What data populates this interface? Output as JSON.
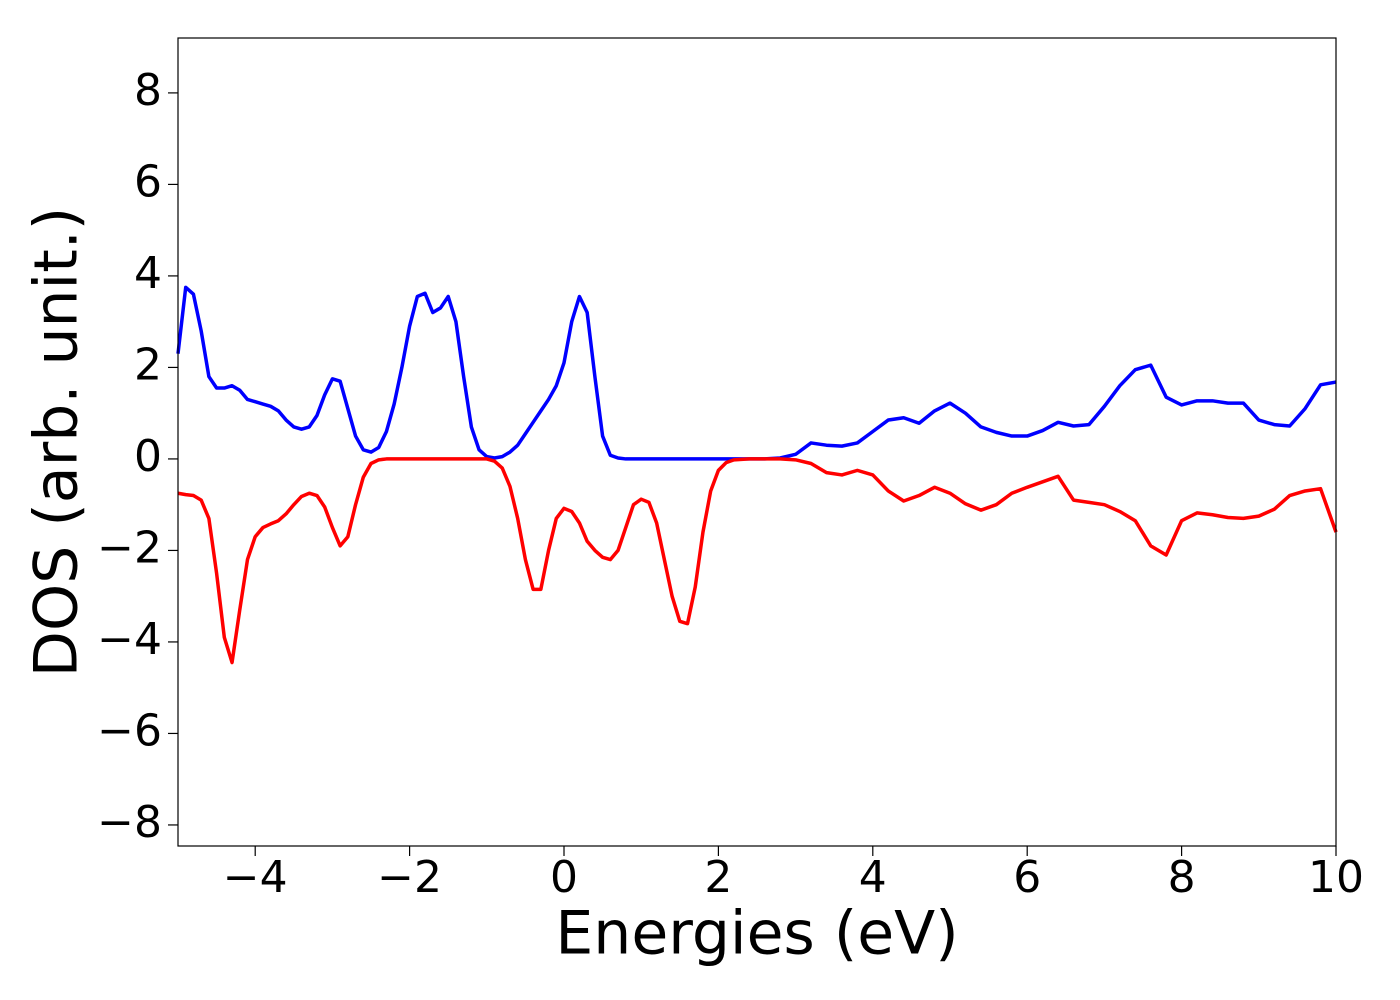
{
  "chart_data": {
    "type": "line",
    "xlabel": "Energies (eV)",
    "ylabel": "DOS (arb. unit.)",
    "x": [
      -5,
      -4.9,
      -4.8,
      -4.7,
      -4.6,
      -4.5,
      -4.4,
      -4.3,
      -4.2,
      -4.1,
      -4,
      -3.9,
      -3.8,
      -3.7,
      -3.6,
      -3.5,
      -3.4,
      -3.3,
      -3.2,
      -3.1,
      -3,
      -2.9,
      -2.8,
      -2.7,
      -2.6,
      -2.5,
      -2.4,
      -2.3,
      -2.2,
      -2.1,
      -2,
      -1.9,
      -1.8,
      -1.7,
      -1.6,
      -1.5,
      -1.4,
      -1.3,
      -1.2,
      -1.1,
      -1,
      -0.9,
      -0.8,
      -0.7,
      -0.6,
      -0.5,
      -0.4,
      -0.3,
      -0.2,
      -0.1,
      0,
      0.1,
      0.2,
      0.3,
      0.4,
      0.5,
      0.6,
      0.7,
      0.8,
      0.9,
      1,
      1.1,
      1.2,
      1.3,
      1.4,
      1.5,
      1.6,
      1.7,
      1.8,
      1.9,
      2,
      2.1,
      2.2,
      2.4,
      2.6,
      2.8,
      3,
      3.2,
      3.4,
      3.6,
      3.8,
      4,
      4.2,
      4.4,
      4.6,
      4.8,
      5,
      5.2,
      5.4,
      5.6,
      5.8,
      6,
      6.2,
      6.4,
      6.6,
      6.8,
      7,
      7.2,
      7.4,
      7.6,
      7.8,
      8,
      8.2,
      8.4,
      8.6,
      8.8,
      9,
      9.2,
      9.4,
      9.6,
      9.8,
      10
    ],
    "series": [
      {
        "color": "#0000ff",
        "values": [
          2.3,
          3.75,
          3.6,
          2.8,
          1.8,
          1.55,
          1.55,
          1.6,
          1.5,
          1.3,
          1.25,
          1.2,
          1.15,
          1.05,
          0.85,
          0.7,
          0.65,
          0.7,
          0.95,
          1.4,
          1.75,
          1.7,
          1.1,
          0.5,
          0.2,
          0.15,
          0.25,
          0.6,
          1.2,
          2.0,
          2.9,
          3.55,
          3.62,
          3.2,
          3.3,
          3.55,
          3.0,
          1.8,
          0.7,
          0.2,
          0.05,
          0.02,
          0.05,
          0.15,
          0.3,
          0.55,
          0.8,
          1.05,
          1.3,
          1.6,
          2.1,
          3.0,
          3.55,
          3.2,
          1.8,
          0.5,
          0.08,
          0.02,
          0,
          0,
          0,
          0,
          0,
          0,
          0,
          0,
          0,
          0,
          0,
          0,
          0,
          0,
          0,
          0,
          0,
          0.02,
          0.1,
          0.35,
          0.3,
          0.28,
          0.35,
          0.6,
          0.85,
          0.9,
          0.78,
          1.05,
          1.22,
          1.0,
          0.7,
          0.58,
          0.5,
          0.5,
          0.62,
          0.8,
          0.72,
          0.75,
          1.15,
          1.6,
          1.95,
          2.05,
          1.35,
          1.18,
          1.27,
          1.27,
          1.22,
          1.22,
          0.85,
          0.75,
          0.72,
          1.1,
          1.62,
          1.68
        ]
      },
      {
        "color": "#ff0000",
        "values": [
          -0.75,
          -0.78,
          -0.8,
          -0.9,
          -1.3,
          -2.5,
          -3.9,
          -4.45,
          -3.3,
          -2.2,
          -1.7,
          -1.5,
          -1.42,
          -1.35,
          -1.2,
          -1.0,
          -0.82,
          -0.75,
          -0.8,
          -1.05,
          -1.5,
          -1.9,
          -1.7,
          -1.0,
          -0.4,
          -0.1,
          -0.02,
          0,
          0,
          0,
          0,
          0,
          0,
          0,
          0,
          0,
          0,
          0,
          0,
          0,
          0,
          -0.05,
          -0.2,
          -0.6,
          -1.3,
          -2.2,
          -2.85,
          -2.85,
          -2.0,
          -1.3,
          -1.08,
          -1.15,
          -1.4,
          -1.8,
          -2.0,
          -2.15,
          -2.2,
          -2.0,
          -1.5,
          -1.0,
          -0.88,
          -0.95,
          -1.4,
          -2.2,
          -3.0,
          -3.55,
          -3.6,
          -2.8,
          -1.6,
          -0.7,
          -0.25,
          -0.08,
          -0.02,
          0,
          0,
          0,
          -0.02,
          -0.1,
          -0.3,
          -0.35,
          -0.25,
          -0.35,
          -0.7,
          -0.92,
          -0.8,
          -0.62,
          -0.75,
          -0.98,
          -1.12,
          -1.0,
          -0.75,
          -0.62,
          -0.5,
          -0.38,
          -0.9,
          -0.95,
          -1.0,
          -1.15,
          -1.35,
          -1.9,
          -2.1,
          -1.35,
          -1.18,
          -1.22,
          -1.28,
          -1.3,
          -1.25,
          -1.1,
          -0.8,
          -0.7,
          -0.65,
          -1.6
        ]
      }
    ],
    "xlim": [
      -5,
      10
    ],
    "xticks": [
      {
        "value": -4,
        "label": "−4"
      },
      {
        "value": -2,
        "label": "−2"
      },
      0,
      2,
      4,
      6,
      8,
      10
    ],
    "ylim": [
      -8.46,
      9.2
    ],
    "yticks": [
      {
        "value": -8,
        "label": "−8"
      },
      {
        "value": -6,
        "label": "−6"
      },
      {
        "value": -4,
        "label": "−4"
      },
      {
        "value": -2,
        "label": "−2"
      },
      0,
      2,
      4,
      6,
      8
    ],
    "grid": false
  }
}
